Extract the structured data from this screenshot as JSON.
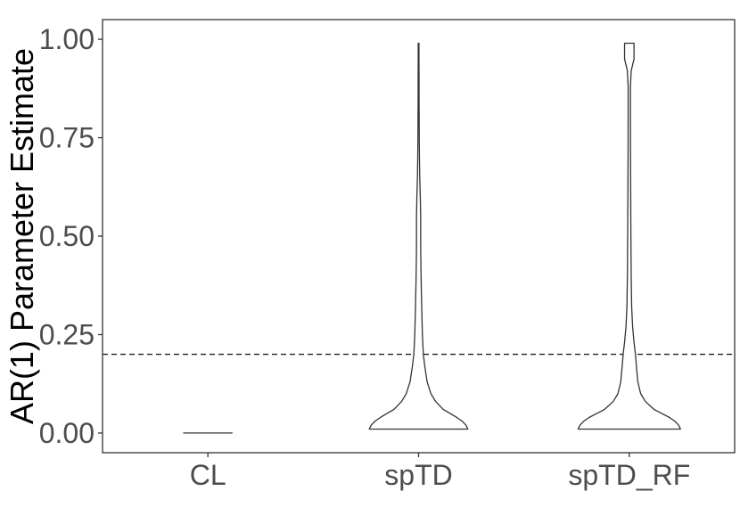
{
  "chart_data": {
    "type": "violin",
    "ylabel": "AR(1) Parameter Estimate",
    "xlabel": "",
    "categories": [
      "CL",
      "spTD",
      "spTD_RF"
    ],
    "y_ticks": [
      0.0,
      0.25,
      0.5,
      0.75,
      1.0
    ],
    "y_tick_labels": [
      "0.00",
      "0.25",
      "0.50",
      "0.75",
      "1.00"
    ],
    "ylim": [
      -0.05,
      1.05
    ],
    "reference_line": {
      "y": 0.2,
      "style": "dashed"
    },
    "grid": false,
    "legend": "none",
    "series": [
      {
        "category": "CL",
        "density_profile": [
          [
            0.0,
            0.26
          ]
        ]
      },
      {
        "category": "spTD",
        "density_profile": [
          [
            0.01,
            0.52
          ],
          [
            0.02,
            0.5
          ],
          [
            0.03,
            0.46
          ],
          [
            0.04,
            0.4
          ],
          [
            0.05,
            0.33
          ],
          [
            0.06,
            0.26
          ],
          [
            0.08,
            0.18
          ],
          [
            0.1,
            0.13
          ],
          [
            0.13,
            0.09
          ],
          [
            0.17,
            0.065
          ],
          [
            0.2,
            0.05
          ],
          [
            0.25,
            0.04
          ],
          [
            0.3,
            0.035
          ],
          [
            0.35,
            0.03
          ],
          [
            0.4,
            0.026
          ],
          [
            0.45,
            0.023
          ],
          [
            0.5,
            0.022
          ],
          [
            0.55,
            0.022
          ],
          [
            0.6,
            0.018
          ],
          [
            0.65,
            0.012
          ],
          [
            0.7,
            0.009
          ],
          [
            0.75,
            0.007
          ],
          [
            0.8,
            0.006
          ],
          [
            0.85,
            0.005
          ],
          [
            0.9,
            0.005
          ],
          [
            0.95,
            0.004
          ],
          [
            0.99,
            0.004
          ]
        ]
      },
      {
        "category": "spTD_RF",
        "density_profile": [
          [
            0.01,
            0.54
          ],
          [
            0.02,
            0.52
          ],
          [
            0.03,
            0.48
          ],
          [
            0.04,
            0.42
          ],
          [
            0.05,
            0.34
          ],
          [
            0.06,
            0.26
          ],
          [
            0.08,
            0.17
          ],
          [
            0.1,
            0.12
          ],
          [
            0.13,
            0.09
          ],
          [
            0.17,
            0.075
          ],
          [
            0.2,
            0.065
          ],
          [
            0.23,
            0.05
          ],
          [
            0.27,
            0.035
          ],
          [
            0.32,
            0.025
          ],
          [
            0.4,
            0.02
          ],
          [
            0.5,
            0.017
          ],
          [
            0.6,
            0.015
          ],
          [
            0.7,
            0.013
          ],
          [
            0.8,
            0.012
          ],
          [
            0.88,
            0.012
          ],
          [
            0.92,
            0.02
          ],
          [
            0.95,
            0.05
          ],
          [
            0.97,
            0.05
          ],
          [
            0.99,
            0.05
          ]
        ]
      }
    ]
  }
}
